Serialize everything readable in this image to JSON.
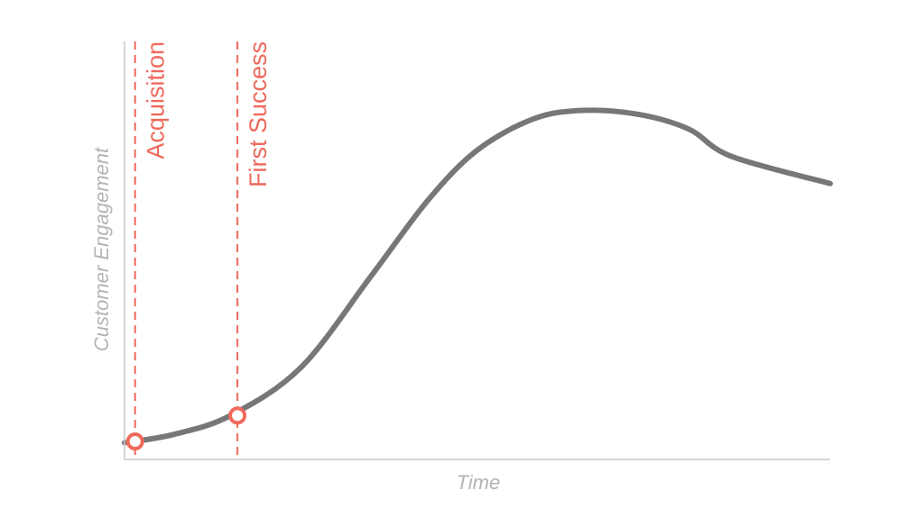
{
  "chart_data": {
    "type": "line",
    "title": "",
    "xlabel": "Time",
    "ylabel": "Customer Engagement",
    "xlim": [
      0,
      100
    ],
    "ylim": [
      0,
      100
    ],
    "grid": false,
    "series": [
      {
        "values": [
          {
            "x": 0,
            "y": 4
          },
          {
            "x": 7,
            "y": 6
          },
          {
            "x": 15,
            "y": 10.5
          },
          {
            "x": 25,
            "y": 22
          },
          {
            "x": 35,
            "y": 44
          },
          {
            "x": 43,
            "y": 62
          },
          {
            "x": 50,
            "y": 74
          },
          {
            "x": 58,
            "y": 81.5
          },
          {
            "x": 65,
            "y": 83.5
          },
          {
            "x": 73,
            "y": 82.5
          },
          {
            "x": 80,
            "y": 79
          },
          {
            "x": 86,
            "y": 72.5
          },
          {
            "x": 100,
            "y": 66
          }
        ]
      }
    ],
    "annotations": [
      {
        "label": "Acquisition",
        "x": 1.5,
        "y": 4.3
      },
      {
        "label": "First Success",
        "x": 16,
        "y": 10.5
      }
    ],
    "colors": {
      "line": "#777777",
      "axis": "#c8c8c8",
      "annotation": "#ef6a5c",
      "axis_title": "#b3b3b3"
    }
  }
}
